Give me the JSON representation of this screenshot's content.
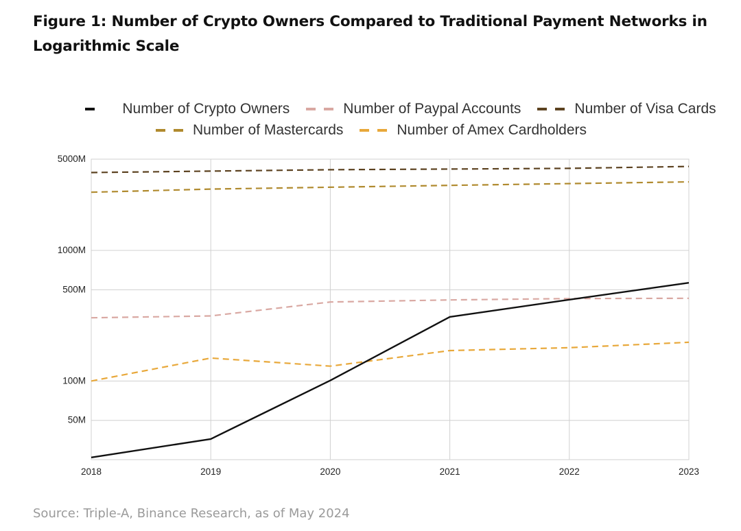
{
  "title": "Figure 1: Number of Crypto Owners Compared to Traditional Payment Networks in Logarithmic Scale",
  "source": "Source: Triple-A, Binance Research, as of May 2024",
  "chart_data": {
    "type": "line",
    "scale": "log",
    "x": [
      "2018",
      "2019",
      "2020",
      "2021",
      "2022",
      "2023"
    ],
    "ylim": [
      25,
      5000
    ],
    "yticks": [
      {
        "value": 5000,
        "label": "5000M"
      },
      {
        "value": 1000,
        "label": "1000M"
      },
      {
        "value": 500,
        "label": "500M"
      },
      {
        "value": 100,
        "label": "100M"
      },
      {
        "value": 50,
        "label": "50M"
      }
    ],
    "grid": true,
    "unit": "millions",
    "series": [
      {
        "key": "crypto",
        "name": "Number of Crypto Owners",
        "color": "#111111",
        "dashed": false,
        "values": [
          26,
          36,
          101,
          310,
          420,
          565
        ]
      },
      {
        "key": "paypal",
        "name": "Number of Paypal Accounts",
        "color": "#d9a8a2",
        "dashed": true,
        "values": [
          305,
          315,
          403,
          418,
          428,
          430
        ]
      },
      {
        "key": "visa",
        "name": "Number of Visa Cards",
        "color": "#5c4220",
        "dashed": true,
        "values": [
          3950,
          4050,
          4150,
          4200,
          4250,
          4400
        ]
      },
      {
        "key": "mastercard",
        "name": "Number of Mastercards",
        "color": "#b08a2e",
        "dashed": true,
        "values": [
          2790,
          2950,
          3050,
          3150,
          3250,
          3350
        ]
      },
      {
        "key": "amex",
        "name": "Number of Amex Cardholders",
        "color": "#e8a83a",
        "dashed": true,
        "values": [
          100,
          150,
          130,
          171,
          180,
          198
        ]
      }
    ]
  }
}
